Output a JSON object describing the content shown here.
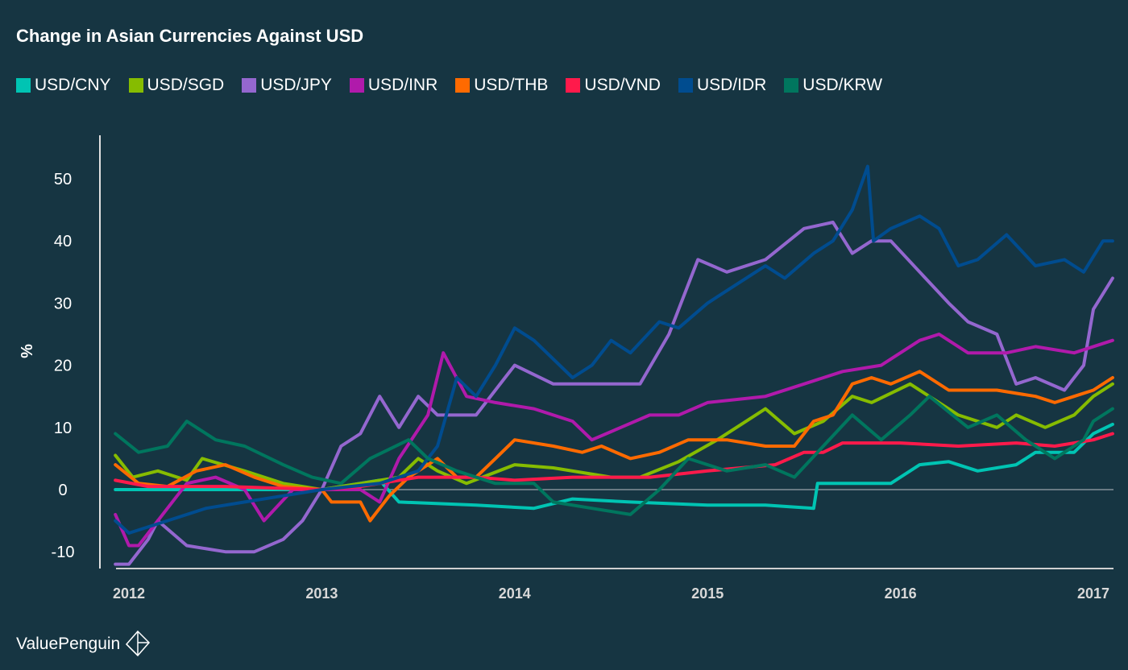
{
  "chart_data": {
    "type": "line",
    "title": "Change in Asian Currencies Against USD",
    "ylabel": "%",
    "xlabel": "",
    "xlim": [
      2011.93,
      2017.1
    ],
    "ylim": [
      -12.5,
      57
    ],
    "x_ticks": [
      "2012",
      "2013",
      "2014",
      "2015",
      "2016",
      "2017"
    ],
    "y_ticks": [
      "-10",
      "0",
      "10",
      "20",
      "30",
      "40",
      "50"
    ],
    "grid": false,
    "legend_position": "top-left",
    "series": [
      {
        "name": "USD/CNY",
        "color": "#00c4b3",
        "points": [
          [
            2011.93,
            0
          ],
          [
            2012.5,
            0
          ],
          [
            2013.0,
            0
          ],
          [
            2013.3,
            1.5
          ],
          [
            2013.4,
            -2
          ],
          [
            2013.8,
            -2.5
          ],
          [
            2014.1,
            -3
          ],
          [
            2014.3,
            -1.5
          ],
          [
            2014.6,
            -2
          ],
          [
            2015.0,
            -2.5
          ],
          [
            2015.3,
            -2.5
          ],
          [
            2015.55,
            -3
          ],
          [
            2015.57,
            1
          ],
          [
            2015.95,
            1
          ],
          [
            2016.1,
            4
          ],
          [
            2016.25,
            4.5
          ],
          [
            2016.4,
            3
          ],
          [
            2016.6,
            4
          ],
          [
            2016.7,
            6
          ],
          [
            2016.9,
            6
          ],
          [
            2017.0,
            9
          ],
          [
            2017.1,
            10.5
          ]
        ]
      },
      {
        "name": "USD/SGD",
        "color": "#86bc00",
        "points": [
          [
            2011.93,
            5.5
          ],
          [
            2012.02,
            2
          ],
          [
            2012.15,
            3
          ],
          [
            2012.3,
            1.5
          ],
          [
            2012.38,
            5
          ],
          [
            2012.6,
            3
          ],
          [
            2012.8,
            1
          ],
          [
            2013.0,
            0
          ],
          [
            2013.2,
            1
          ],
          [
            2013.4,
            2
          ],
          [
            2013.5,
            5
          ],
          [
            2013.6,
            3
          ],
          [
            2013.75,
            1
          ],
          [
            2014.0,
            4
          ],
          [
            2014.2,
            3.5
          ],
          [
            2014.5,
            2
          ],
          [
            2014.65,
            2
          ],
          [
            2014.85,
            4.5
          ],
          [
            2015.05,
            8
          ],
          [
            2015.2,
            11
          ],
          [
            2015.3,
            13
          ],
          [
            2015.45,
            9
          ],
          [
            2015.6,
            11
          ],
          [
            2015.75,
            15
          ],
          [
            2015.85,
            14
          ],
          [
            2016.05,
            17
          ],
          [
            2016.3,
            12
          ],
          [
            2016.5,
            10
          ],
          [
            2016.6,
            12
          ],
          [
            2016.75,
            10
          ],
          [
            2016.9,
            12
          ],
          [
            2017.0,
            15
          ],
          [
            2017.1,
            17
          ]
        ]
      },
      {
        "name": "USD/JPY",
        "color": "#9467cf",
        "points": [
          [
            2011.93,
            -12
          ],
          [
            2012.0,
            -12
          ],
          [
            2012.1,
            -8
          ],
          [
            2012.15,
            -5
          ],
          [
            2012.3,
            -9
          ],
          [
            2012.5,
            -10
          ],
          [
            2012.65,
            -10
          ],
          [
            2012.8,
            -8
          ],
          [
            2012.9,
            -5
          ],
          [
            2013.0,
            0
          ],
          [
            2013.1,
            7
          ],
          [
            2013.2,
            9
          ],
          [
            2013.3,
            15
          ],
          [
            2013.4,
            10
          ],
          [
            2013.5,
            15
          ],
          [
            2013.6,
            12
          ],
          [
            2013.8,
            12
          ],
          [
            2013.95,
            18
          ],
          [
            2014.0,
            20
          ],
          [
            2014.2,
            17
          ],
          [
            2014.5,
            17
          ],
          [
            2014.65,
            17
          ],
          [
            2014.8,
            25
          ],
          [
            2014.95,
            37
          ],
          [
            2015.1,
            35
          ],
          [
            2015.3,
            37
          ],
          [
            2015.5,
            42
          ],
          [
            2015.65,
            43
          ],
          [
            2015.75,
            38
          ],
          [
            2015.85,
            40
          ],
          [
            2015.95,
            40
          ],
          [
            2016.1,
            35
          ],
          [
            2016.25,
            30
          ],
          [
            2016.35,
            27
          ],
          [
            2016.5,
            25
          ],
          [
            2016.6,
            17
          ],
          [
            2016.7,
            18
          ],
          [
            2016.85,
            16
          ],
          [
            2016.95,
            20
          ],
          [
            2017.0,
            29
          ],
          [
            2017.1,
            34
          ]
        ]
      },
      {
        "name": "USD/INR",
        "color": "#b01aab",
        "points": [
          [
            2011.93,
            -4
          ],
          [
            2012.0,
            -9
          ],
          [
            2012.05,
            -9
          ],
          [
            2012.15,
            -5
          ],
          [
            2012.3,
            1
          ],
          [
            2012.45,
            2
          ],
          [
            2012.6,
            0
          ],
          [
            2012.7,
            -5
          ],
          [
            2012.85,
            0
          ],
          [
            2013.0,
            0
          ],
          [
            2013.2,
            0
          ],
          [
            2013.3,
            -2
          ],
          [
            2013.4,
            5
          ],
          [
            2013.55,
            12
          ],
          [
            2013.63,
            22
          ],
          [
            2013.75,
            15
          ],
          [
            2013.9,
            14
          ],
          [
            2014.1,
            13
          ],
          [
            2014.3,
            11
          ],
          [
            2014.4,
            8
          ],
          [
            2014.55,
            10
          ],
          [
            2014.7,
            12
          ],
          [
            2014.85,
            12
          ],
          [
            2015.0,
            14
          ],
          [
            2015.3,
            15
          ],
          [
            2015.5,
            17
          ],
          [
            2015.7,
            19
          ],
          [
            2015.9,
            20
          ],
          [
            2016.1,
            24
          ],
          [
            2016.2,
            25
          ],
          [
            2016.35,
            22
          ],
          [
            2016.55,
            22
          ],
          [
            2016.7,
            23
          ],
          [
            2016.9,
            22
          ],
          [
            2017.1,
            24
          ]
        ]
      },
      {
        "name": "USD/THB",
        "color": "#ff6a00",
        "points": [
          [
            2011.93,
            4
          ],
          [
            2012.05,
            1
          ],
          [
            2012.2,
            0.5
          ],
          [
            2012.35,
            3
          ],
          [
            2012.5,
            4
          ],
          [
            2012.65,
            2
          ],
          [
            2012.8,
            0.5
          ],
          [
            2013.0,
            0
          ],
          [
            2013.05,
            -2
          ],
          [
            2013.2,
            -2
          ],
          [
            2013.25,
            -5
          ],
          [
            2013.35,
            -1
          ],
          [
            2013.45,
            2
          ],
          [
            2013.6,
            5
          ],
          [
            2013.7,
            2
          ],
          [
            2013.8,
            2
          ],
          [
            2013.9,
            5
          ],
          [
            2014.0,
            8
          ],
          [
            2014.2,
            7
          ],
          [
            2014.35,
            6
          ],
          [
            2014.45,
            7
          ],
          [
            2014.6,
            5
          ],
          [
            2014.75,
            6
          ],
          [
            2014.9,
            8
          ],
          [
            2015.1,
            8
          ],
          [
            2015.3,
            7
          ],
          [
            2015.45,
            7
          ],
          [
            2015.55,
            11
          ],
          [
            2015.65,
            12
          ],
          [
            2015.75,
            17
          ],
          [
            2015.85,
            18
          ],
          [
            2015.95,
            17
          ],
          [
            2016.1,
            19
          ],
          [
            2016.25,
            16
          ],
          [
            2016.4,
            16
          ],
          [
            2016.5,
            16
          ],
          [
            2016.7,
            15
          ],
          [
            2016.8,
            14
          ],
          [
            2016.9,
            15
          ],
          [
            2017.0,
            16
          ],
          [
            2017.1,
            18
          ]
        ]
      },
      {
        "name": "USD/VND",
        "color": "#ff1a4b",
        "points": [
          [
            2011.93,
            1.5
          ],
          [
            2012.1,
            0.5
          ],
          [
            2012.5,
            0.5
          ],
          [
            2013.0,
            0
          ],
          [
            2013.2,
            0.5
          ],
          [
            2013.5,
            2
          ],
          [
            2013.8,
            2
          ],
          [
            2014.0,
            1.5
          ],
          [
            2014.3,
            2
          ],
          [
            2014.7,
            2
          ],
          [
            2015.0,
            3
          ],
          [
            2015.35,
            4
          ],
          [
            2015.5,
            6
          ],
          [
            2015.6,
            6
          ],
          [
            2015.7,
            7.5
          ],
          [
            2016.0,
            7.5
          ],
          [
            2016.3,
            7
          ],
          [
            2016.6,
            7.5
          ],
          [
            2016.8,
            7
          ],
          [
            2017.0,
            8
          ],
          [
            2017.1,
            9
          ]
        ]
      },
      {
        "name": "USD/IDR",
        "color": "#004c8f",
        "points": [
          [
            2011.93,
            -5
          ],
          [
            2012.0,
            -7
          ],
          [
            2012.2,
            -5
          ],
          [
            2012.4,
            -3
          ],
          [
            2012.6,
            -2
          ],
          [
            2012.8,
            -1
          ],
          [
            2013.0,
            0
          ],
          [
            2013.3,
            1
          ],
          [
            2013.5,
            3
          ],
          [
            2013.6,
            7
          ],
          [
            2013.7,
            18
          ],
          [
            2013.8,
            15
          ],
          [
            2013.9,
            20
          ],
          [
            2014.0,
            26
          ],
          [
            2014.1,
            24
          ],
          [
            2014.3,
            18
          ],
          [
            2014.4,
            20
          ],
          [
            2014.5,
            24
          ],
          [
            2014.6,
            22
          ],
          [
            2014.75,
            27
          ],
          [
            2014.85,
            26
          ],
          [
            2015.0,
            30
          ],
          [
            2015.15,
            33
          ],
          [
            2015.3,
            36
          ],
          [
            2015.4,
            34
          ],
          [
            2015.55,
            38
          ],
          [
            2015.65,
            40
          ],
          [
            2015.75,
            45
          ],
          [
            2015.83,
            52
          ],
          [
            2015.86,
            40
          ],
          [
            2015.95,
            42
          ],
          [
            2016.1,
            44
          ],
          [
            2016.2,
            42
          ],
          [
            2016.3,
            36
          ],
          [
            2016.4,
            37
          ],
          [
            2016.55,
            41
          ],
          [
            2016.7,
            36
          ],
          [
            2016.85,
            37
          ],
          [
            2016.95,
            35
          ],
          [
            2017.05,
            40
          ],
          [
            2017.1,
            40
          ]
        ]
      },
      {
        "name": "USD/KRW",
        "color": "#00765e",
        "points": [
          [
            2011.93,
            9
          ],
          [
            2012.05,
            6
          ],
          [
            2012.2,
            7
          ],
          [
            2012.3,
            11
          ],
          [
            2012.45,
            8
          ],
          [
            2012.6,
            7
          ],
          [
            2012.8,
            4
          ],
          [
            2012.95,
            2
          ],
          [
            2013.1,
            1
          ],
          [
            2013.25,
            5
          ],
          [
            2013.45,
            8
          ],
          [
            2013.55,
            5
          ],
          [
            2013.7,
            3
          ],
          [
            2013.9,
            1
          ],
          [
            2014.1,
            1
          ],
          [
            2014.2,
            -2
          ],
          [
            2014.4,
            -3
          ],
          [
            2014.6,
            -4
          ],
          [
            2014.75,
            0
          ],
          [
            2014.9,
            5
          ],
          [
            2015.1,
            3
          ],
          [
            2015.3,
            4
          ],
          [
            2015.45,
            2
          ],
          [
            2015.6,
            7
          ],
          [
            2015.75,
            12
          ],
          [
            2015.9,
            8
          ],
          [
            2016.05,
            12
          ],
          [
            2016.15,
            15
          ],
          [
            2016.35,
            10
          ],
          [
            2016.5,
            12
          ],
          [
            2016.65,
            8
          ],
          [
            2016.8,
            5
          ],
          [
            2016.95,
            8
          ],
          [
            2017.0,
            11
          ],
          [
            2017.1,
            13
          ]
        ]
      }
    ]
  },
  "brand": {
    "name": "ValuePenguin"
  }
}
